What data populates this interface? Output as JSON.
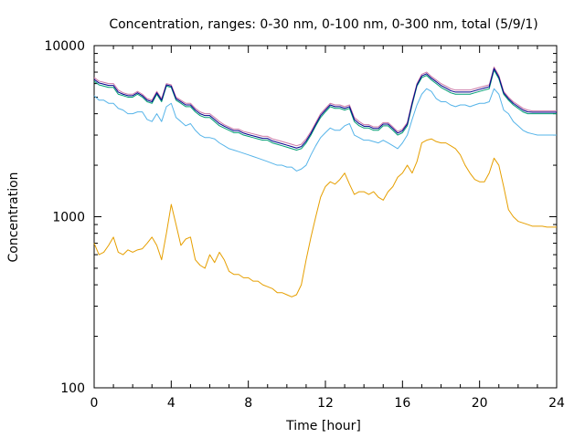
{
  "chart_data": {
    "type": "line",
    "title": "Concentration, ranges: 0-30 nm, 0-100 nm, 0-300 nm, total (5/9/1)",
    "xlabel": "Time [hour]",
    "ylabel": "Concentration",
    "xlim": [
      0,
      24
    ],
    "ylim": [
      100,
      10000
    ],
    "y_scale": "log",
    "x_ticks": [
      0,
      4,
      8,
      12,
      16,
      20,
      24
    ],
    "x_tick_labels": [
      "0",
      "4",
      "8",
      "12",
      "16",
      "20",
      "24"
    ],
    "y_ticks": [
      100,
      1000,
      10000
    ],
    "y_tick_labels": [
      "100",
      "1000",
      "10000"
    ],
    "grid": false,
    "x": [
      0,
      0.25,
      0.5,
      0.75,
      1,
      1.25,
      1.5,
      1.75,
      2,
      2.25,
      2.5,
      2.75,
      3,
      3.25,
      3.5,
      3.75,
      4,
      4.25,
      4.5,
      4.75,
      5,
      5.25,
      5.5,
      5.75,
      6,
      6.25,
      6.5,
      6.75,
      7,
      7.25,
      7.5,
      7.75,
      8,
      8.25,
      8.5,
      8.75,
      9,
      9.25,
      9.5,
      9.75,
      10,
      10.25,
      10.5,
      10.75,
      11,
      11.25,
      11.5,
      11.75,
      12,
      12.25,
      12.5,
      12.75,
      13,
      13.25,
      13.5,
      13.75,
      14,
      14.25,
      14.5,
      14.75,
      15,
      15.25,
      15.5,
      15.75,
      16,
      16.25,
      16.5,
      16.75,
      17,
      17.25,
      17.5,
      17.75,
      18,
      18.25,
      18.5,
      18.75,
      19,
      19.25,
      19.5,
      19.75,
      20,
      20.25,
      20.5,
      20.75,
      21,
      21.25,
      21.5,
      21.75,
      22,
      22.25,
      22.5,
      22.75,
      23,
      23.25,
      23.5,
      23.75,
      24
    ],
    "series": [
      {
        "color": "#e69f00",
        "values": [
          700,
          600,
          620,
          680,
          760,
          620,
          600,
          640,
          620,
          640,
          650,
          700,
          760,
          680,
          560,
          800,
          1180,
          900,
          680,
          740,
          760,
          560,
          520,
          500,
          600,
          540,
          620,
          560,
          480,
          460,
          460,
          440,
          440,
          420,
          420,
          400,
          390,
          380,
          360,
          360,
          350,
          340,
          350,
          400,
          560,
          760,
          1000,
          1300,
          1500,
          1600,
          1550,
          1650,
          1800,
          1550,
          1350,
          1400,
          1400,
          1350,
          1400,
          1300,
          1250,
          1400,
          1500,
          1700,
          1800,
          2000,
          1800,
          2100,
          2700,
          2800,
          2850,
          2750,
          2700,
          2700,
          2600,
          2500,
          2300,
          2000,
          1800,
          1650,
          1600,
          1600,
          1800,
          2200,
          2000,
          1500,
          1100,
          1000,
          940,
          920,
          900,
          880,
          880,
          880,
          870,
          870,
          870
        ]
      },
      {
        "color": "#56b4e9",
        "values": [
          5100,
          4800,
          4800,
          4600,
          4600,
          4300,
          4200,
          4000,
          4000,
          4100,
          4100,
          3700,
          3600,
          4000,
          3600,
          4400,
          4600,
          3800,
          3600,
          3400,
          3500,
          3200,
          3000,
          2900,
          2900,
          2850,
          2700,
          2600,
          2500,
          2450,
          2400,
          2350,
          2300,
          2250,
          2200,
          2150,
          2100,
          2050,
          2000,
          2000,
          1950,
          1950,
          1850,
          1900,
          2000,
          2300,
          2600,
          2900,
          3100,
          3300,
          3200,
          3200,
          3400,
          3500,
          3000,
          2900,
          2800,
          2800,
          2750,
          2700,
          2800,
          2700,
          2600,
          2500,
          2700,
          3000,
          3700,
          4500,
          5200,
          5600,
          5400,
          4900,
          4700,
          4700,
          4500,
          4400,
          4500,
          4500,
          4400,
          4500,
          4600,
          4600,
          4700,
          5600,
          5200,
          4200,
          4000,
          3600,
          3400,
          3200,
          3100,
          3050,
          3000,
          3000,
          3000,
          3000,
          3000
        ]
      },
      {
        "color": "#009e73",
        "values": [
          6200,
          5900,
          5800,
          5700,
          5700,
          5200,
          5100,
          5000,
          5000,
          5200,
          5000,
          4700,
          4600,
          5200,
          4700,
          5800,
          5700,
          4800,
          4600,
          4400,
          4400,
          4100,
          3900,
          3800,
          3800,
          3600,
          3400,
          3300,
          3200,
          3100,
          3100,
          3000,
          2950,
          2900,
          2850,
          2800,
          2800,
          2700,
          2650,
          2600,
          2550,
          2500,
          2450,
          2500,
          2700,
          3000,
          3400,
          3800,
          4100,
          4400,
          4300,
          4300,
          4200,
          4300,
          3600,
          3400,
          3300,
          3300,
          3200,
          3200,
          3400,
          3400,
          3200,
          3000,
          3100,
          3400,
          4500,
          5800,
          6500,
          6700,
          6300,
          6000,
          5700,
          5500,
          5300,
          5200,
          5200,
          5200,
          5200,
          5300,
          5400,
          5500,
          5600,
          7200,
          6400,
          5200,
          4800,
          4500,
          4300,
          4100,
          4000,
          4000,
          4000,
          4000,
          4000,
          4000,
          4000
        ]
      },
      {
        "color": "#cc79a7",
        "values": [
          6500,
          6200,
          6100,
          6000,
          6000,
          5500,
          5300,
          5200,
          5200,
          5400,
          5200,
          4900,
          4800,
          5400,
          4900,
          6000,
          5900,
          5000,
          4800,
          4600,
          4600,
          4300,
          4100,
          4000,
          4000,
          3800,
          3600,
          3450,
          3350,
          3250,
          3250,
          3150,
          3100,
          3050,
          3000,
          2950,
          2950,
          2850,
          2800,
          2750,
          2700,
          2650,
          2600,
          2650,
          2850,
          3150,
          3550,
          4000,
          4300,
          4600,
          4500,
          4500,
          4400,
          4500,
          3800,
          3600,
          3450,
          3450,
          3350,
          3350,
          3550,
          3550,
          3350,
          3150,
          3250,
          3550,
          4700,
          6000,
          6800,
          7000,
          6600,
          6300,
          6000,
          5800,
          5600,
          5500,
          5500,
          5500,
          5500,
          5600,
          5700,
          5800,
          5900,
          7500,
          6700,
          5400,
          5000,
          4700,
          4500,
          4300,
          4200,
          4150,
          4150,
          4150,
          4150,
          4150,
          4150
        ]
      },
      {
        "color": "#00008b",
        "values": [
          6350,
          6050,
          5950,
          5850,
          5850,
          5350,
          5200,
          5100,
          5100,
          5300,
          5100,
          4800,
          4700,
          5300,
          4800,
          5900,
          5800,
          4900,
          4700,
          4500,
          4500,
          4200,
          4000,
          3900,
          3900,
          3700,
          3500,
          3380,
          3280,
          3180,
          3180,
          3080,
          3020,
          2970,
          2920,
          2870,
          2870,
          2770,
          2720,
          2670,
          2620,
          2570,
          2520,
          2570,
          2770,
          3070,
          3470,
          3900,
          4200,
          4500,
          4400,
          4400,
          4300,
          4400,
          3700,
          3500,
          3380,
          3380,
          3280,
          3280,
          3480,
          3480,
          3280,
          3080,
          3180,
          3480,
          4600,
          5900,
          6650,
          6850,
          6450,
          6150,
          5850,
          5650,
          5450,
          5350,
          5350,
          5350,
          5350,
          5450,
          5550,
          5650,
          5750,
          7350,
          6550,
          5300,
          4900,
          4600,
          4400,
          4200,
          4100,
          4080,
          4080,
          4080,
          4080,
          4080,
          4080
        ]
      }
    ]
  }
}
